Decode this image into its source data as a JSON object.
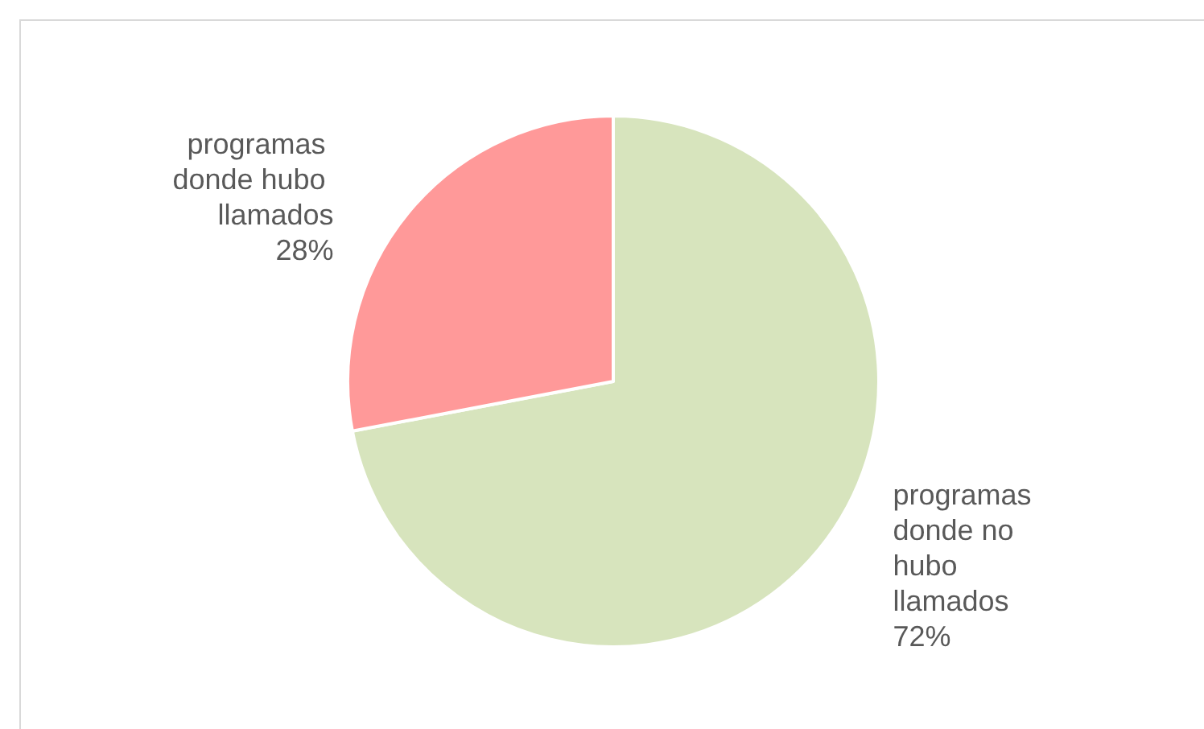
{
  "chart_data": {
    "type": "pie",
    "categories": [
      "programas donde no hubo llamados",
      "programas donde hubo llamados"
    ],
    "values": [
      72,
      28
    ],
    "colors": [
      "#d7e4bd",
      "#ff9999"
    ],
    "value_labels": [
      "72%",
      "28%"
    ],
    "legend": false
  }
}
